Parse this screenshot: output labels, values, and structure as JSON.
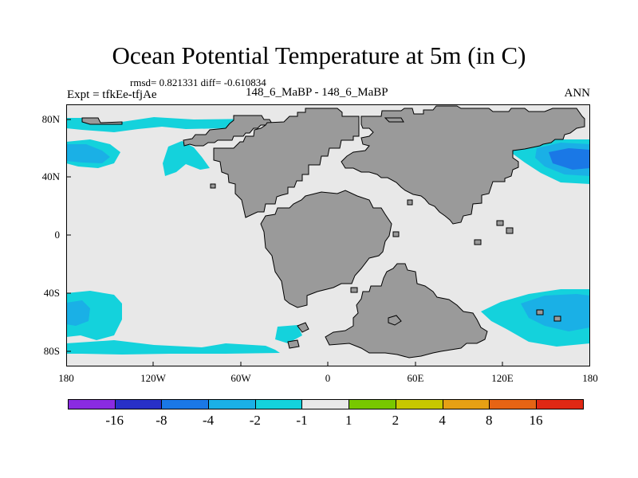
{
  "title": "Ocean Potential Temperature at 5m (in C)",
  "stats": "rmsd= 0.821331 diff= -0.610834",
  "expt": "Expt = tfkEe-tfjAe",
  "cases": "148_6_MaBP - 148_6_MaBP",
  "season": "ANN",
  "lat_ticks": [
    "80N",
    "40N",
    "0",
    "40S",
    "80S"
  ],
  "lon_ticks": [
    "180",
    "120W",
    "60W",
    "0",
    "60E",
    "120E",
    "180"
  ],
  "colorbar": {
    "colors": [
      "#8a2be2",
      "#2830c8",
      "#1a78e6",
      "#1ab0e6",
      "#14d2dc",
      "#e8e8e8",
      "#78c800",
      "#c8c800",
      "#e6a014",
      "#e66414",
      "#e02814"
    ],
    "labels": [
      "-16",
      "-8",
      "-4",
      "-2",
      "-1",
      "1",
      "2",
      "4",
      "8",
      "16"
    ]
  },
  "map_colors": {
    "background": "#e8e8e8",
    "land": "#9a9a9a",
    "anomaly_minus1": "#14d2dc",
    "anomaly_minus2": "#1ab0e6",
    "anomaly_minus4": "#1a78e6"
  }
}
